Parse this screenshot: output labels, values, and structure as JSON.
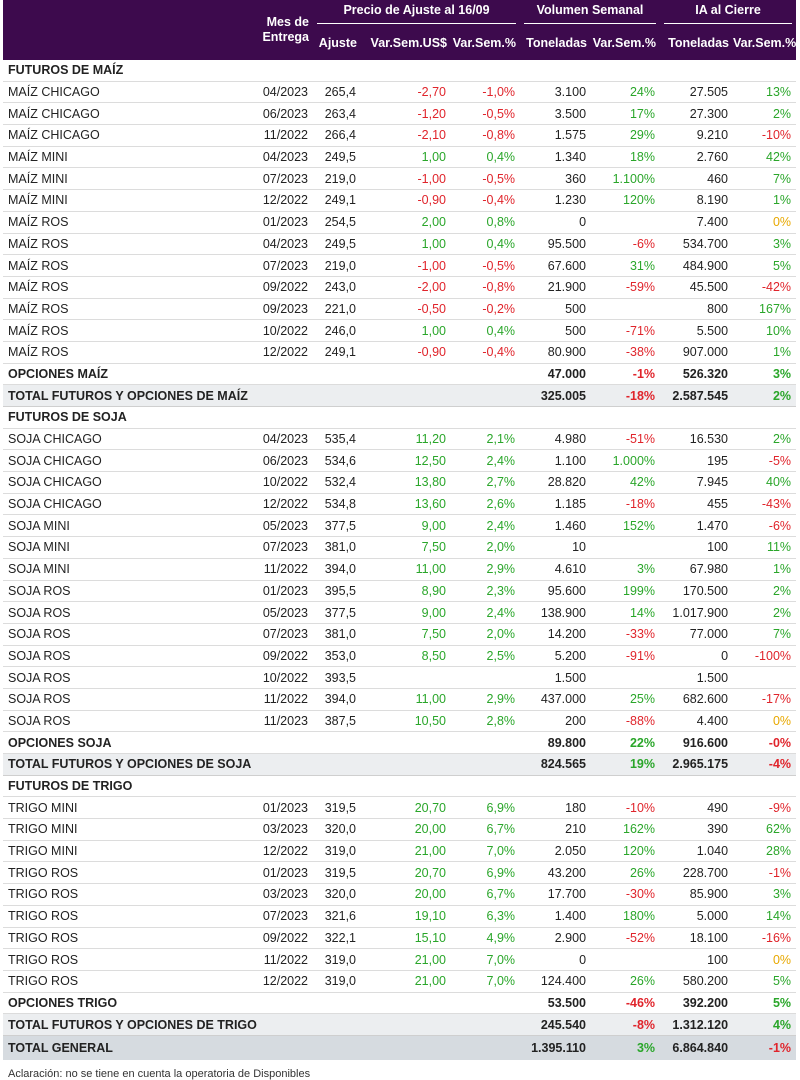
{
  "header": {
    "mes_de": "Mes de",
    "entrega": "Entrega",
    "precio_group": "Precio de Ajuste al 16/09",
    "volumen_group": "Volumen Semanal",
    "ia_group": "IA al Cierre",
    "ajuste": "Ajuste",
    "var_sem_usd": "Var.Sem.US$",
    "var_sem_pct": "Var.Sem.%",
    "toneladas": "Toneladas",
    "vol_var": "Var.Sem.%",
    "ia_toneladas": "Toneladas",
    "ia_var": "Var.Sem.%"
  },
  "colors": {
    "header_bg": "#3d0a4d",
    "negative": "#e0242b",
    "positive": "#2aa62a",
    "zero": "#e8a800",
    "total_bg": "#eceef0",
    "general_bg": "#d6dbe0"
  },
  "rows": [
    {
      "type": "sec",
      "name": "FUTUROS DE MAÍZ"
    },
    {
      "type": "d",
      "name": "MAÍZ CHICAGO",
      "mes": "04/2023",
      "aj": "265,4",
      "vu": "-2,70",
      "vp": "-1,0%",
      "ton": "3.100",
      "tv": "24%",
      "ia": "27.505",
      "iv": "13%"
    },
    {
      "type": "d",
      "name": "MAÍZ CHICAGO",
      "mes": "06/2023",
      "aj": "263,4",
      "vu": "-1,20",
      "vp": "-0,5%",
      "ton": "3.500",
      "tv": "17%",
      "ia": "27.300",
      "iv": "2%"
    },
    {
      "type": "d",
      "name": "MAÍZ CHICAGO",
      "mes": "11/2022",
      "aj": "266,4",
      "vu": "-2,10",
      "vp": "-0,8%",
      "ton": "1.575",
      "tv": "29%",
      "ia": "9.210",
      "iv": "-10%"
    },
    {
      "type": "d",
      "name": "MAÍZ MINI",
      "mes": "04/2023",
      "aj": "249,5",
      "vu": "1,00",
      "vp": "0,4%",
      "ton": "1.340",
      "tv": "18%",
      "ia": "2.760",
      "iv": "42%"
    },
    {
      "type": "d",
      "name": "MAÍZ MINI",
      "mes": "07/2023",
      "aj": "219,0",
      "vu": "-1,00",
      "vp": "-0,5%",
      "ton": "360",
      "tv": "1.100%",
      "ia": "460",
      "iv": "7%"
    },
    {
      "type": "d",
      "name": "MAÍZ MINI",
      "mes": "12/2022",
      "aj": "249,1",
      "vu": "-0,90",
      "vp": "-0,4%",
      "ton": "1.230",
      "tv": "120%",
      "ia": "8.190",
      "iv": "1%"
    },
    {
      "type": "d",
      "name": "MAÍZ ROS",
      "mes": "01/2023",
      "aj": "254,5",
      "vu": "2,00",
      "vp": "0,8%",
      "ton": "0",
      "tv": "",
      "ia": "7.400",
      "iv": "0%"
    },
    {
      "type": "d",
      "name": "MAÍZ ROS",
      "mes": "04/2023",
      "aj": "249,5",
      "vu": "1,00",
      "vp": "0,4%",
      "ton": "95.500",
      "tv": "-6%",
      "ia": "534.700",
      "iv": "3%"
    },
    {
      "type": "d",
      "name": "MAÍZ ROS",
      "mes": "07/2023",
      "aj": "219,0",
      "vu": "-1,00",
      "vp": "-0,5%",
      "ton": "67.600",
      "tv": "31%",
      "ia": "484.900",
      "iv": "5%"
    },
    {
      "type": "d",
      "name": "MAÍZ ROS",
      "mes": "09/2022",
      "aj": "243,0",
      "vu": "-2,00",
      "vp": "-0,8%",
      "ton": "21.900",
      "tv": "-59%",
      "ia": "45.500",
      "iv": "-42%"
    },
    {
      "type": "d",
      "name": "MAÍZ ROS",
      "mes": "09/2023",
      "aj": "221,0",
      "vu": "-0,50",
      "vp": "-0,2%",
      "ton": "500",
      "tv": "",
      "ia": "800",
      "iv": "167%"
    },
    {
      "type": "d",
      "name": "MAÍZ ROS",
      "mes": "10/2022",
      "aj": "246,0",
      "vu": "1,00",
      "vp": "0,4%",
      "ton": "500",
      "tv": "-71%",
      "ia": "5.500",
      "iv": "10%"
    },
    {
      "type": "d",
      "name": "MAÍZ ROS",
      "mes": "12/2022",
      "aj": "249,1",
      "vu": "-0,90",
      "vp": "-0,4%",
      "ton": "80.900",
      "tv": "-38%",
      "ia": "907.000",
      "iv": "1%"
    },
    {
      "type": "opt",
      "name": "OPCIONES MAÍZ",
      "ton": "47.000",
      "tv": "-1%",
      "ia": "526.320",
      "iv": "3%"
    },
    {
      "type": "tot",
      "name": "TOTAL FUTUROS Y OPCIONES DE MAÍZ",
      "ton": "325.005",
      "tv": "-18%",
      "ia": "2.587.545",
      "iv": "2%"
    },
    {
      "type": "sec",
      "name": "FUTUROS DE SOJA"
    },
    {
      "type": "d",
      "name": "SOJA CHICAGO",
      "mes": "04/2023",
      "aj": "535,4",
      "vu": "11,20",
      "vp": "2,1%",
      "ton": "4.980",
      "tv": "-51%",
      "ia": "16.530",
      "iv": "2%"
    },
    {
      "type": "d",
      "name": "SOJA CHICAGO",
      "mes": "06/2023",
      "aj": "534,6",
      "vu": "12,50",
      "vp": "2,4%",
      "ton": "1.100",
      "tv": "1.000%",
      "ia": "195",
      "iv": "-5%"
    },
    {
      "type": "d",
      "name": "SOJA CHICAGO",
      "mes": "10/2022",
      "aj": "532,4",
      "vu": "13,80",
      "vp": "2,7%",
      "ton": "28.820",
      "tv": "42%",
      "ia": "7.945",
      "iv": "40%"
    },
    {
      "type": "d",
      "name": "SOJA CHICAGO",
      "mes": "12/2022",
      "aj": "534,8",
      "vu": "13,60",
      "vp": "2,6%",
      "ton": "1.185",
      "tv": "-18%",
      "ia": "455",
      "iv": "-43%"
    },
    {
      "type": "d",
      "name": "SOJA MINI",
      "mes": "05/2023",
      "aj": "377,5",
      "vu": "9,00",
      "vp": "2,4%",
      "ton": "1.460",
      "tv": "152%",
      "ia": "1.470",
      "iv": "-6%"
    },
    {
      "type": "d",
      "name": "SOJA MINI",
      "mes": "07/2023",
      "aj": "381,0",
      "vu": "7,50",
      "vp": "2,0%",
      "ton": "10",
      "tv": "",
      "ia": "100",
      "iv": "11%"
    },
    {
      "type": "d",
      "name": "SOJA MINI",
      "mes": "11/2022",
      "aj": "394,0",
      "vu": "11,00",
      "vp": "2,9%",
      "ton": "4.610",
      "tv": "3%",
      "ia": "67.980",
      "iv": "1%"
    },
    {
      "type": "d",
      "name": "SOJA ROS",
      "mes": "01/2023",
      "aj": "395,5",
      "vu": "8,90",
      "vp": "2,3%",
      "ton": "95.600",
      "tv": "199%",
      "ia": "170.500",
      "iv": "2%"
    },
    {
      "type": "d",
      "name": "SOJA ROS",
      "mes": "05/2023",
      "aj": "377,5",
      "vu": "9,00",
      "vp": "2,4%",
      "ton": "138.900",
      "tv": "14%",
      "ia": "1.017.900",
      "iv": "2%"
    },
    {
      "type": "d",
      "name": "SOJA ROS",
      "mes": "07/2023",
      "aj": "381,0",
      "vu": "7,50",
      "vp": "2,0%",
      "ton": "14.200",
      "tv": "-33%",
      "ia": "77.000",
      "iv": "7%"
    },
    {
      "type": "d",
      "name": "SOJA ROS",
      "mes": "09/2022",
      "aj": "353,0",
      "vu": "8,50",
      "vp": "2,5%",
      "ton": "5.200",
      "tv": "-91%",
      "ia": "0",
      "iv": "-100%"
    },
    {
      "type": "d",
      "name": "SOJA ROS",
      "mes": "10/2022",
      "aj": "393,5",
      "vu": "",
      "vp": "",
      "ton": "1.500",
      "tv": "",
      "ia": "1.500",
      "iv": ""
    },
    {
      "type": "d",
      "name": "SOJA ROS",
      "mes": "11/2022",
      "aj": "394,0",
      "vu": "11,00",
      "vp": "2,9%",
      "ton": "437.000",
      "tv": "25%",
      "ia": "682.600",
      "iv": "-17%"
    },
    {
      "type": "d",
      "name": "SOJA ROS",
      "mes": "11/2023",
      "aj": "387,5",
      "vu": "10,50",
      "vp": "2,8%",
      "ton": "200",
      "tv": "-88%",
      "ia": "4.400",
      "iv": "0%"
    },
    {
      "type": "opt",
      "name": "OPCIONES SOJA",
      "ton": "89.800",
      "tv": "22%",
      "ia": "916.600",
      "iv": "-0%"
    },
    {
      "type": "tot",
      "name": "TOTAL FUTUROS Y OPCIONES DE SOJA",
      "ton": "824.565",
      "tv": "19%",
      "ia": "2.965.175",
      "iv": "-4%"
    },
    {
      "type": "sec",
      "name": "FUTUROS DE TRIGO"
    },
    {
      "type": "d",
      "name": "TRIGO MINI",
      "mes": "01/2023",
      "aj": "319,5",
      "vu": "20,70",
      "vp": "6,9%",
      "ton": "180",
      "tv": "-10%",
      "ia": "490",
      "iv": "-9%"
    },
    {
      "type": "d",
      "name": "TRIGO MINI",
      "mes": "03/2023",
      "aj": "320,0",
      "vu": "20,00",
      "vp": "6,7%",
      "ton": "210",
      "tv": "162%",
      "ia": "390",
      "iv": "62%"
    },
    {
      "type": "d",
      "name": "TRIGO MINI",
      "mes": "12/2022",
      "aj": "319,0",
      "vu": "21,00",
      "vp": "7,0%",
      "ton": "2.050",
      "tv": "120%",
      "ia": "1.040",
      "iv": "28%"
    },
    {
      "type": "d",
      "name": "TRIGO ROS",
      "mes": "01/2023",
      "aj": "319,5",
      "vu": "20,70",
      "vp": "6,9%",
      "ton": "43.200",
      "tv": "26%",
      "ia": "228.700",
      "iv": "-1%"
    },
    {
      "type": "d",
      "name": "TRIGO ROS",
      "mes": "03/2023",
      "aj": "320,0",
      "vu": "20,00",
      "vp": "6,7%",
      "ton": "17.700",
      "tv": "-30%",
      "ia": "85.900",
      "iv": "3%"
    },
    {
      "type": "d",
      "name": "TRIGO ROS",
      "mes": "07/2023",
      "aj": "321,6",
      "vu": "19,10",
      "vp": "6,3%",
      "ton": "1.400",
      "tv": "180%",
      "ia": "5.000",
      "iv": "14%"
    },
    {
      "type": "d",
      "name": "TRIGO ROS",
      "mes": "09/2022",
      "aj": "322,1",
      "vu": "15,10",
      "vp": "4,9%",
      "ton": "2.900",
      "tv": "-52%",
      "ia": "18.100",
      "iv": "-16%"
    },
    {
      "type": "d",
      "name": "TRIGO ROS",
      "mes": "11/2022",
      "aj": "319,0",
      "vu": "21,00",
      "vp": "7,0%",
      "ton": "0",
      "tv": "",
      "ia": "100",
      "iv": "0%"
    },
    {
      "type": "d",
      "name": "TRIGO ROS",
      "mes": "12/2022",
      "aj": "319,0",
      "vu": "21,00",
      "vp": "7,0%",
      "ton": "124.400",
      "tv": "26%",
      "ia": "580.200",
      "iv": "5%"
    },
    {
      "type": "opt",
      "name": "OPCIONES TRIGO",
      "ton": "53.500",
      "tv": "-46%",
      "ia": "392.200",
      "iv": "5%"
    },
    {
      "type": "tot",
      "name": "TOTAL FUTUROS Y OPCIONES DE TRIGO",
      "ton": "245.540",
      "tv": "-8%",
      "ia": "1.312.120",
      "iv": "4%"
    },
    {
      "type": "gen",
      "name": "TOTAL GENERAL",
      "ton": "1.395.110",
      "tv": "3%",
      "ia": "6.864.840",
      "iv": "-1%"
    }
  ],
  "note": "Aclaración: no se tiene en cuenta la operatoria de Disponibles"
}
